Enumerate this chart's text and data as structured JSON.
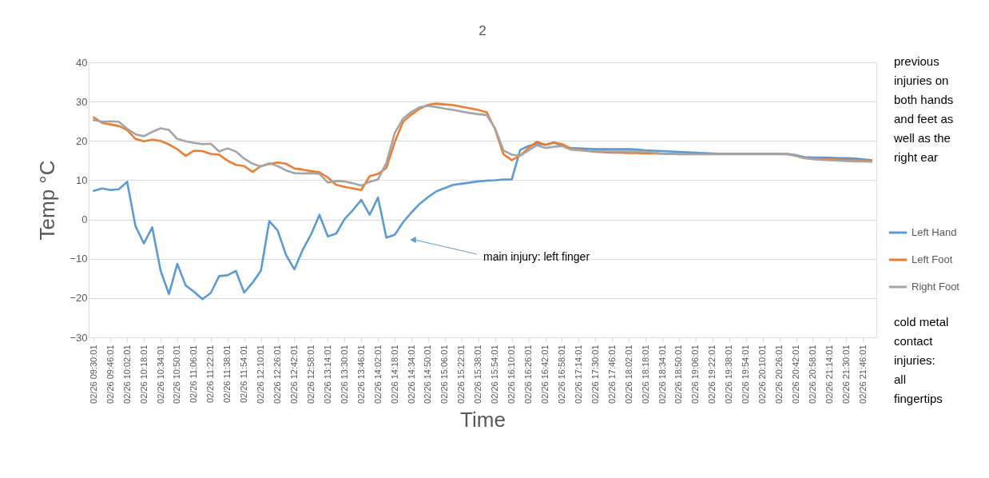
{
  "chart_data": {
    "type": "line",
    "title": "2",
    "xlabel": "Time",
    "ylabel": "Temp °C",
    "ylim": [
      -30,
      40
    ],
    "yticks": [
      -30,
      -20,
      -10,
      0,
      10,
      20,
      30,
      40
    ],
    "categories": [
      "02/26 09:30:01",
      null,
      "02/26 09:46:01",
      null,
      "02/26 10:02:01",
      null,
      "02/26 10:18:01",
      null,
      "02/26 10:34:01",
      null,
      "02/26 10:50:01",
      null,
      "02/26 11:06:01",
      null,
      "02/26 11:22:01",
      null,
      "02/26 11:38:01",
      null,
      "02/26 11:54:01",
      null,
      "02/26 12:10:01",
      null,
      "02/26 12:26:01",
      null,
      "02/26 12:42:01",
      null,
      "02/26 12:58:01",
      null,
      "02/26 13:14:01",
      null,
      "02/26 13:30:01",
      null,
      "02/26 13:46:01",
      null,
      "02/26 14:02:01",
      null,
      "02/26 14:18:01",
      null,
      "02/26 14:34:01",
      null,
      "02/26 14:50:01",
      null,
      "02/26 15:06:01",
      null,
      "02/26 15:22:01",
      null,
      "02/26 15:38:01",
      null,
      "02/26 15:54:01",
      null,
      "02/26 16:10:01",
      null,
      "02/26 16:26:01",
      null,
      "02/26 16:42:01",
      null,
      "02/26 16:58:01",
      null,
      "02/26 17:14:01",
      null,
      "02/26 17:30:01",
      null,
      "02/26 17:46:01",
      null,
      "02/26 18:02:01",
      null,
      "02/26 18:18:01",
      null,
      "02/26 18:34:01",
      null,
      "02/26 18:50:01",
      null,
      "02/26 19:06:01",
      null,
      "02/26 19:22:01",
      null,
      "02/26 19:38:01",
      null,
      "02/26 19:54:01",
      null,
      "02/26 20:10:01",
      null,
      "02/26 20:26:01",
      null,
      "02/26 20:42:01",
      null,
      "02/26 20:58:01",
      null,
      "02/26 21:14:01",
      null,
      "02/26 21:30:01",
      null,
      "02/26 21:46:01",
      null
    ],
    "grid": "y",
    "legend": "right",
    "series": [
      {
        "name": "Left Hand",
        "color": "#5b9bd5",
        "values": [
          7.3,
          7.9,
          7.5,
          7.7,
          9.6,
          -1.7,
          -6.1,
          -2.0,
          -13.0,
          -19.0,
          -11.3,
          -16.8,
          -18.4,
          -20.3,
          -18.7,
          -14.4,
          -14.2,
          -13.1,
          -18.6,
          -16.1,
          -13.0,
          -0.4,
          -2.8,
          -9.0,
          -12.7,
          -7.7,
          -3.8,
          1.2,
          -4.3,
          -3.6,
          0.1,
          2.4,
          5.0,
          1.2,
          5.6,
          -4.6,
          -3.9,
          -0.7,
          1.8,
          4.0,
          5.7,
          7.2,
          8.0,
          8.8,
          9.1,
          9.4,
          9.7,
          9.9,
          10.0,
          10.2,
          10.2,
          17.7,
          18.7,
          19.3,
          19.0,
          19.6,
          18.8,
          18.2,
          18.1,
          18.0,
          17.9,
          17.9,
          17.9,
          17.9,
          17.9,
          17.8,
          17.6,
          17.5,
          17.4,
          17.3,
          17.2,
          17.1,
          17.0,
          16.9,
          16.8,
          16.7,
          16.7,
          16.7,
          16.7,
          16.7,
          16.7,
          16.7,
          16.7,
          16.7,
          16.4,
          15.9,
          15.8,
          15.8,
          15.7,
          15.6,
          15.6,
          15.5,
          15.3,
          15.1
        ]
      },
      {
        "name": "Left Foot",
        "color": "#ed7d31",
        "values": [
          26.0,
          24.6,
          24.2,
          23.8,
          22.8,
          20.5,
          19.9,
          20.3,
          20.0,
          19.1,
          17.9,
          16.2,
          17.5,
          17.4,
          16.7,
          16.5,
          15.0,
          13.9,
          13.6,
          12.1,
          13.6,
          14.1,
          14.5,
          14.2,
          13.0,
          12.7,
          12.3,
          12.0,
          10.7,
          8.8,
          8.3,
          7.9,
          7.5,
          11.0,
          11.6,
          13.1,
          19.7,
          24.9,
          26.7,
          28.2,
          29.2,
          29.5,
          29.3,
          29.1,
          28.7,
          28.3,
          27.9,
          27.3,
          23.0,
          16.6,
          15.1,
          16.3,
          18.2,
          19.8,
          19.0,
          19.6,
          19.2,
          18.1,
          17.8,
          17.5,
          17.2,
          17.1,
          17.0,
          17.0,
          16.9,
          16.9,
          16.8,
          16.8,
          16.7,
          16.7,
          16.7,
          16.7,
          16.7,
          16.7,
          16.7,
          16.7,
          16.7,
          16.7,
          16.7,
          16.7,
          16.7,
          16.7,
          16.7,
          16.6,
          16.2,
          15.7,
          15.4,
          15.3,
          15.3,
          15.2,
          15.2,
          15.1,
          15.0,
          14.9
        ]
      },
      {
        "name": "Right Foot",
        "color": "#a5a5a5",
        "values": [
          25.3,
          24.9,
          25.0,
          24.9,
          23.1,
          21.7,
          21.2,
          22.3,
          23.2,
          22.8,
          20.5,
          19.9,
          19.5,
          19.2,
          19.3,
          17.3,
          18.1,
          17.3,
          15.5,
          14.2,
          13.5,
          14.3,
          13.6,
          12.5,
          11.8,
          11.7,
          11.8,
          11.6,
          9.4,
          9.8,
          9.7,
          9.2,
          8.6,
          9.6,
          10.2,
          14.4,
          22.0,
          25.7,
          27.4,
          28.6,
          28.9,
          28.6,
          28.2,
          27.9,
          27.5,
          27.1,
          26.8,
          26.6,
          23.2,
          17.6,
          16.5,
          16.2,
          17.6,
          18.9,
          18.2,
          18.5,
          18.7,
          17.8,
          17.6,
          17.4,
          17.3,
          17.3,
          17.3,
          17.3,
          17.3,
          17.3,
          17.3,
          17.0,
          16.8,
          16.7,
          16.6,
          16.6,
          16.6,
          16.6,
          16.6,
          16.6,
          16.6,
          16.6,
          16.6,
          16.6,
          16.6,
          16.6,
          16.6,
          16.6,
          16.2,
          15.6,
          15.4,
          15.2,
          15.1,
          15.0,
          14.9,
          14.8,
          14.8,
          14.7
        ]
      }
    ],
    "annotations": [
      "main injury: left finger",
      "previous injuries on both hands and feet as well as the right ear",
      "cold metal contact injuries: all fingertips"
    ]
  }
}
